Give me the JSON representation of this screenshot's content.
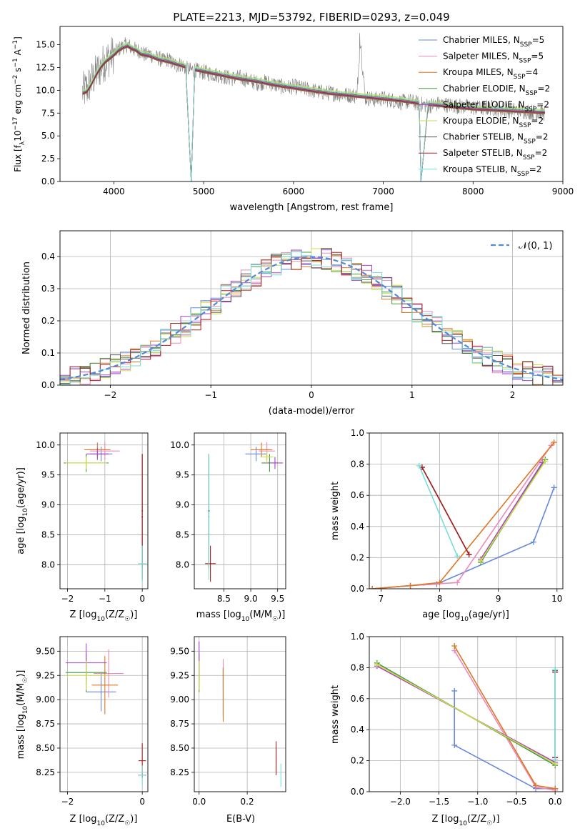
{
  "chart_data": [
    {
      "id": "spectrum",
      "type": "line",
      "title": "PLATE=2213, MJD=53792, FIBERID=0293, z=0.049",
      "xlabel": "wavelength [Angstrom, rest frame]",
      "ylabel": "Flux [f$_\\lambda$10$^{-17}$ erg cm$^{-2}$ s$^{-1}$ A$^{-1}$]",
      "ylabel_parts": [
        "Flux [f",
        "λ",
        "10",
        "−17",
        " erg cm",
        "−2",
        " s",
        "−1",
        " A",
        "−1",
        "]"
      ],
      "xlim": [
        3400,
        9000
      ],
      "ylim": [
        0,
        17
      ],
      "xticks": [
        4000,
        5000,
        6000,
        7000,
        8000,
        9000
      ],
      "yticks": [
        0.0,
        2.5,
        5.0,
        7.5,
        10.0,
        12.5,
        15.0
      ],
      "grid": false,
      "legend_position": "top-right",
      "observed_color": "#808080",
      "observed": {
        "x": [
          3650,
          3700,
          3750,
          3800,
          3850,
          3900,
          3950,
          4000,
          4050,
          4100,
          4150,
          4200,
          4250,
          4300,
          4350,
          4400,
          4450,
          4500,
          4550,
          4600,
          4650,
          4700,
          4750,
          4800,
          4850,
          4900,
          4950,
          5000,
          5100,
          5200,
          5300,
          5400,
          5500,
          5600,
          5700,
          5800,
          5900,
          6000,
          6100,
          6200,
          6300,
          6400,
          6500,
          6600,
          6700,
          6750,
          6800,
          6900,
          7000,
          7100,
          7200,
          7300,
          7400,
          7500,
          7600,
          7700,
          7800,
          7900,
          8000,
          8100,
          8200,
          8300,
          8400,
          8500,
          8600,
          8700,
          8800
        ],
        "y": [
          9.8,
          10.2,
          11.0,
          11.8,
          12.5,
          13.2,
          13.6,
          14.0,
          14.5,
          14.8,
          15.0,
          14.6,
          14.4,
          14.3,
          13.8,
          14.0,
          13.6,
          13.5,
          13.2,
          13.4,
          13.0,
          12.7,
          12.9,
          12.4,
          12.2,
          12.3,
          12.0,
          12.0,
          11.8,
          11.6,
          11.3,
          11.4,
          11.1,
          10.8,
          10.9,
          10.6,
          10.3,
          10.4,
          10.2,
          10.0,
          9.8,
          9.7,
          9.6,
          9.5,
          9.4,
          14.5,
          9.2,
          9.0,
          9.1,
          8.9,
          8.7,
          8.8,
          8.5,
          8.3,
          8.5,
          8.4,
          8.3,
          8.2,
          8.1,
          8.0,
          8.1,
          7.9,
          7.8,
          7.8,
          7.7,
          7.6,
          7.5
        ]
      },
      "model_x": [
        3650,
        3700,
        3750,
        3800,
        3850,
        3900,
        3950,
        4000,
        4050,
        4100,
        4150,
        4200,
        4250,
        4300,
        4350,
        4400,
        4450,
        4500,
        4600,
        4700,
        4800,
        4861,
        4900,
        5000,
        5200,
        5400,
        5600,
        5800,
        6000,
        6200,
        6400,
        6600,
        6800,
        7000,
        7200,
        7400,
        7420,
        7500,
        7600,
        7700,
        7800,
        7900,
        8000,
        8200,
        8400,
        8600,
        8800
      ],
      "model_y": [
        9.6,
        9.8,
        10.6,
        11.6,
        12.4,
        13.0,
        13.4,
        13.8,
        14.3,
        14.6,
        14.8,
        14.5,
        14.3,
        13.9,
        13.8,
        13.7,
        13.5,
        13.3,
        13.1,
        12.8,
        12.5,
        0.0,
        12.2,
        12.0,
        11.6,
        11.2,
        10.9,
        10.5,
        10.2,
        9.9,
        9.6,
        9.4,
        9.2,
        9.0,
        8.8,
        8.5,
        0.0,
        8.4,
        8.3,
        8.2,
        8.1,
        8.0,
        7.9,
        7.8,
        7.7,
        7.6,
        7.5
      ],
      "series": [
        {
          "name": "Chabrier MILES, N$_{SSP}$=5",
          "label_main": "Chabrier MILES, N",
          "label_sub": "SSP",
          "label_end": "=5",
          "color": "#6688dd",
          "offset": 0.0
        },
        {
          "name": "Salpeter MILES, N$_{SSP}$=5",
          "label_main": "Salpeter MILES, N",
          "label_sub": "SSP",
          "label_end": "=5",
          "color": "#ee88bb",
          "offset": 0.15
        },
        {
          "name": "Kroupa MILES, N$_{SSP}$=4",
          "label_main": "Kroupa MILES, N",
          "label_sub": "SSP",
          "label_end": "=4",
          "color": "#dd7722",
          "offset": -0.1
        },
        {
          "name": "Chabrier ELODIE, N$_{SSP}$=2",
          "label_main": "Chabrier ELODIE, N",
          "label_sub": "SSP",
          "label_end": "=2",
          "color": "#449944",
          "offset": 0.2
        },
        {
          "name": "Salpeter ELODIE, N$_{SSP}$=2",
          "label_main": "Salpeter ELODIE, N",
          "label_sub": "SSP",
          "label_end": "=2",
          "color": "#aa44cc",
          "offset": 0.1
        },
        {
          "name": "Kroupa ELODIE, N$_{SSP}$=2",
          "label_main": "Kroupa ELODIE, N",
          "label_sub": "SSP",
          "label_end": "=2",
          "color": "#ccdd44",
          "offset": 0.4
        },
        {
          "name": "Chabrier STELIB, N$_{SSP}$=2",
          "label_main": "Chabrier STELIB, N",
          "label_sub": "SSP",
          "label_end": "=2",
          "color": "#555555",
          "offset": -0.05
        },
        {
          "name": "Salpeter STELIB, N$_{SSP}$=2",
          "label_main": "Salpeter STELIB, N",
          "label_sub": "SSP",
          "label_end": "=2",
          "color": "#aa2222",
          "offset": 0.05
        },
        {
          "name": "Kroupa STELIB, N$_{SSP}$=2",
          "label_main": "Kroupa STELIB, N",
          "label_sub": "SSP",
          "label_end": "=2",
          "color": "#77dddd",
          "offset": 0.3
        }
      ]
    },
    {
      "id": "residuals",
      "type": "line",
      "xlabel": "(data-model)/error",
      "ylabel": "Normed distribution",
      "xlim": [
        -2.5,
        2.5
      ],
      "ylim": [
        0,
        0.48
      ],
      "xticks": [
        -2,
        -1,
        0,
        1,
        2
      ],
      "yticks": [
        0.0,
        0.1,
        0.2,
        0.3,
        0.4
      ],
      "grid": true,
      "legend_position": "top-right",
      "legend_label": "$\\mathcal{N}(0,1)$",
      "legend_text": "𝒩(0, 1)",
      "gaussian_color": "#5588dd",
      "bin_width": 0.1,
      "series_colors": [
        "#6688dd",
        "#ee88bb",
        "#dd7722",
        "#449944",
        "#aa44cc",
        "#ccdd44",
        "#555555",
        "#aa2222",
        "#77dddd"
      ]
    },
    {
      "id": "age_vs_Z",
      "type": "scatter",
      "xlabel": "Z [log10(Z/Z☉)]",
      "xlabel_parts": [
        "Z [log",
        "10",
        "(Z/Z",
        "☉",
        ")]"
      ],
      "ylabel": "age  [log10(age/yr)]",
      "ylabel_parts": [
        "age  [log",
        "10",
        "(age/yr)]"
      ],
      "xlim": [
        -2.2,
        0.15
      ],
      "ylim": [
        7.6,
        10.2
      ],
      "xticks": [
        -2,
        -1,
        0
      ],
      "yticks": [
        8.0,
        8.5,
        9.0,
        9.5,
        10.0
      ],
      "grid": true,
      "points": [
        {
          "x": -1.1,
          "y": 9.85,
          "xerr": 0.3,
          "yerr": 0.12,
          "color": "#6688dd"
        },
        {
          "x": -1.0,
          "y": 9.9,
          "xerr": 0.4,
          "yerr": 0.15,
          "color": "#ee88bb"
        },
        {
          "x": -1.2,
          "y": 9.92,
          "xerr": 0.35,
          "yerr": 0.12,
          "color": "#dd7722"
        },
        {
          "x": -1.5,
          "y": 9.7,
          "xerr": 0.6,
          "yerr": 0.15,
          "color": "#449944"
        },
        {
          "x": -1.2,
          "y": 9.85,
          "xerr": 0.3,
          "yerr": 0.1,
          "color": "#aa44cc"
        },
        {
          "x": -1.5,
          "y": 9.7,
          "xerr": 0.55,
          "yerr": 0.1,
          "color": "#ccdd44"
        },
        {
          "x": 0.0,
          "y": 8.9,
          "xerr": 0.02,
          "yerr": 0.95,
          "color": "#555555"
        },
        {
          "x": 0.0,
          "y": 8.8,
          "xerr": 0.02,
          "yerr": 1.05,
          "color": "#aa2222"
        },
        {
          "x": 0.0,
          "y": 8.02,
          "xerr": 0.12,
          "yerr": 0.3,
          "color": "#77dddd"
        }
      ]
    },
    {
      "id": "age_vs_mass",
      "type": "scatter",
      "xlabel": "mass [log10(M/M☉)]",
      "xlabel_parts": [
        "mass [log",
        "10",
        "(M/M",
        "☉",
        ")]"
      ],
      "xlim": [
        7.95,
        9.65
      ],
      "ylim": [
        7.6,
        10.2
      ],
      "xticks": [
        8.5,
        9.0,
        9.5
      ],
      "yticks": [
        8.0,
        8.5,
        9.0,
        9.5,
        10.0
      ],
      "grid": true,
      "points": [
        {
          "x": 9.1,
          "y": 9.85,
          "xerr": 0.2,
          "yerr": 0.12,
          "color": "#6688dd"
        },
        {
          "x": 9.3,
          "y": 9.9,
          "xerr": 0.15,
          "yerr": 0.15,
          "color": "#ee88bb"
        },
        {
          "x": 9.2,
          "y": 9.92,
          "xerr": 0.2,
          "yerr": 0.12,
          "color": "#dd7722"
        },
        {
          "x": 9.35,
          "y": 9.7,
          "xerr": 0.15,
          "yerr": 0.15,
          "color": "#449944"
        },
        {
          "x": 9.45,
          "y": 9.7,
          "xerr": 0.15,
          "yerr": 0.1,
          "color": "#aa44cc"
        },
        {
          "x": 9.3,
          "y": 9.8,
          "xerr": 0.12,
          "yerr": 0.1,
          "color": "#ccdd44"
        },
        {
          "x": 8.22,
          "y": 8.9,
          "xerr": 0.02,
          "yerr": 0.95,
          "color": "#555555"
        },
        {
          "x": 8.25,
          "y": 8.02,
          "xerr": 0.1,
          "yerr": 0.3,
          "color": "#aa2222"
        },
        {
          "x": 8.22,
          "y": 8.8,
          "xerr": 0.02,
          "yerr": 1.05,
          "color": "#77dddd"
        }
      ]
    },
    {
      "id": "massweight_vs_age",
      "type": "line",
      "xlabel": "age  [log10(age/yr)]",
      "xlabel_parts": [
        "age  [log",
        "10",
        "(age/yr)]"
      ],
      "ylabel": "mass weight",
      "xlim": [
        6.8,
        10.1
      ],
      "ylim": [
        0,
        1.0
      ],
      "xticks": [
        7,
        8,
        9,
        10
      ],
      "yticks": [
        0.0,
        0.2,
        0.4,
        0.6,
        0.8,
        1.0
      ],
      "grid": true,
      "series": [
        {
          "color": "#6688dd",
          "x": [
            6.85,
            7.5,
            7.95,
            9.6,
            9.95
          ],
          "y": [
            0.0,
            0.02,
            0.03,
            0.3,
            0.65
          ]
        },
        {
          "color": "#ee88bb",
          "x": [
            6.85,
            7.5,
            8.3,
            9.9
          ],
          "y": [
            0.0,
            0.02,
            0.04,
            0.92
          ]
        },
        {
          "color": "#dd7722",
          "x": [
            6.85,
            7.5,
            8.0,
            9.95
          ],
          "y": [
            0.0,
            0.02,
            0.04,
            0.94
          ]
        },
        {
          "color": "#449944",
          "x": [
            8.7,
            9.8
          ],
          "y": [
            0.17,
            0.83
          ]
        },
        {
          "color": "#aa44cc",
          "x": [
            8.7,
            9.75
          ],
          "y": [
            0.19,
            0.81
          ]
        },
        {
          "color": "#ccdd44",
          "x": [
            8.7,
            9.8
          ],
          "y": [
            0.18,
            0.82
          ]
        },
        {
          "color": "#555555",
          "x": [
            7.7,
            8.5
          ],
          "y": [
            0.78,
            0.22
          ]
        },
        {
          "color": "#aa2222",
          "x": [
            7.7,
            8.5
          ],
          "y": [
            0.78,
            0.22
          ]
        },
        {
          "color": "#77dddd",
          "x": [
            7.65,
            8.3
          ],
          "y": [
            0.79,
            0.21
          ]
        }
      ]
    },
    {
      "id": "mass_vs_Z",
      "type": "scatter",
      "xlabel": "Z [log10(Z/Z☉)]",
      "xlabel_parts": [
        "Z [log",
        "10",
        "(Z/Z",
        "☉",
        ")]"
      ],
      "ylabel": "mass [log10(M/M☉)]",
      "ylabel_parts": [
        "mass [log",
        "10",
        "(M/M",
        "☉",
        ")]"
      ],
      "xlim": [
        -2.2,
        0.15
      ],
      "ylim": [
        8.05,
        9.65
      ],
      "xticks": [
        -2,
        0
      ],
      "yticks": [
        8.25,
        8.5,
        8.75,
        9.0,
        9.25,
        9.5
      ],
      "grid": true,
      "points": [
        {
          "x": -1.1,
          "y": 9.08,
          "xerr": 0.4,
          "yerr": 0.2,
          "color": "#6688dd"
        },
        {
          "x": -0.9,
          "y": 9.27,
          "xerr": 0.4,
          "yerr": 0.25,
          "color": "#ee88bb"
        },
        {
          "x": -1.0,
          "y": 9.15,
          "xerr": 0.35,
          "yerr": 0.3,
          "color": "#dd7722"
        },
        {
          "x": -1.5,
          "y": 9.28,
          "xerr": 0.55,
          "yerr": 0.2,
          "color": "#449944"
        },
        {
          "x": -1.5,
          "y": 9.38,
          "xerr": 0.55,
          "yerr": 0.2,
          "color": "#aa44cc"
        },
        {
          "x": -1.5,
          "y": 9.25,
          "xerr": 0.55,
          "yerr": 0.15,
          "color": "#ccdd44"
        },
        {
          "x": 0.0,
          "y": 8.22,
          "xerr": 0.1,
          "yerr": 0.02,
          "color": "#555555"
        },
        {
          "x": 0.0,
          "y": 8.37,
          "xerr": 0.1,
          "yerr": 0.18,
          "color": "#aa2222"
        },
        {
          "x": 0.0,
          "y": 8.22,
          "xerr": 0.08,
          "yerr": 0.1,
          "color": "#77dddd"
        }
      ]
    },
    {
      "id": "mass_vs_EBV",
      "type": "scatter",
      "xlabel": "E(B-V)",
      "xlim": [
        -0.02,
        0.36
      ],
      "ylim": [
        8.05,
        9.65
      ],
      "xticks": [
        0.0,
        0.2
      ],
      "yticks": [
        8.25,
        8.5,
        8.75,
        9.0,
        9.25,
        9.5
      ],
      "grid": true,
      "points": [
        {
          "x": 0.1,
          "y": 9.08,
          "xerr": 0.0,
          "yerr": 0.25,
          "color": "#6688dd"
        },
        {
          "x": 0.1,
          "y": 9.27,
          "xerr": 0.0,
          "yerr": 0.15,
          "color": "#ee88bb"
        },
        {
          "x": 0.1,
          "y": 9.05,
          "xerr": 0.0,
          "yerr": 0.28,
          "color": "#dd7722"
        },
        {
          "x": 0.0,
          "y": 9.28,
          "xerr": 0.0,
          "yerr": 0.2,
          "color": "#449944"
        },
        {
          "x": 0.0,
          "y": 9.4,
          "xerr": 0.0,
          "yerr": 0.2,
          "color": "#aa44cc"
        },
        {
          "x": 0.0,
          "y": 9.25,
          "xerr": 0.0,
          "yerr": 0.15,
          "color": "#ccdd44"
        },
        {
          "x": 0.32,
          "y": 8.37,
          "xerr": 0.0,
          "yerr": 0.15,
          "color": "#555555"
        },
        {
          "x": 0.32,
          "y": 8.4,
          "xerr": 0.0,
          "yerr": 0.17,
          "color": "#aa2222"
        },
        {
          "x": 0.34,
          "y": 8.22,
          "xerr": 0.0,
          "yerr": 0.12,
          "color": "#77dddd"
        }
      ]
    },
    {
      "id": "massweight_vs_Z",
      "type": "line",
      "xlabel": "Z [log10(Z/Z☉)]",
      "xlabel_parts": [
        "Z [log",
        "10",
        "(Z/Z",
        "☉",
        ")]"
      ],
      "ylabel": "mass weight",
      "xlim": [
        -2.4,
        0.1
      ],
      "ylim": [
        0,
        1.0
      ],
      "xticks": [
        -2.0,
        -1.5,
        -1.0,
        -0.5,
        0.0
      ],
      "yticks": [
        0.0,
        0.2,
        0.4,
        0.6,
        0.8,
        1.0
      ],
      "grid": true,
      "series": [
        {
          "color": "#6688dd",
          "x": [
            -1.3,
            -1.3,
            -0.25,
            0.0
          ],
          "y": [
            0.65,
            0.3,
            0.02,
            0.02
          ]
        },
        {
          "color": "#ee88bb",
          "x": [
            -1.3,
            -0.25,
            0.0
          ],
          "y": [
            0.91,
            0.03,
            0.01
          ]
        },
        {
          "color": "#dd7722",
          "x": [
            -1.3,
            -0.25,
            0.0
          ],
          "y": [
            0.94,
            0.04,
            0.02
          ]
        },
        {
          "color": "#449944",
          "x": [
            -2.3,
            0.0
          ],
          "y": [
            0.83,
            0.17
          ]
        },
        {
          "color": "#aa44cc",
          "x": [
            -2.3,
            0.0
          ],
          "y": [
            0.81,
            0.19
          ]
        },
        {
          "color": "#ccdd44",
          "x": [
            -2.3,
            0.0
          ],
          "y": [
            0.82,
            0.18
          ]
        },
        {
          "color": "#555555",
          "x": [
            0.0,
            0.0
          ],
          "y": [
            0.78,
            0.22
          ]
        },
        {
          "color": "#aa2222",
          "x": [
            0.0,
            0.0
          ],
          "y": [
            0.77,
            0.22
          ]
        },
        {
          "color": "#77dddd",
          "x": [
            0.0,
            0.0
          ],
          "y": [
            0.79,
            0.21
          ]
        }
      ]
    }
  ]
}
